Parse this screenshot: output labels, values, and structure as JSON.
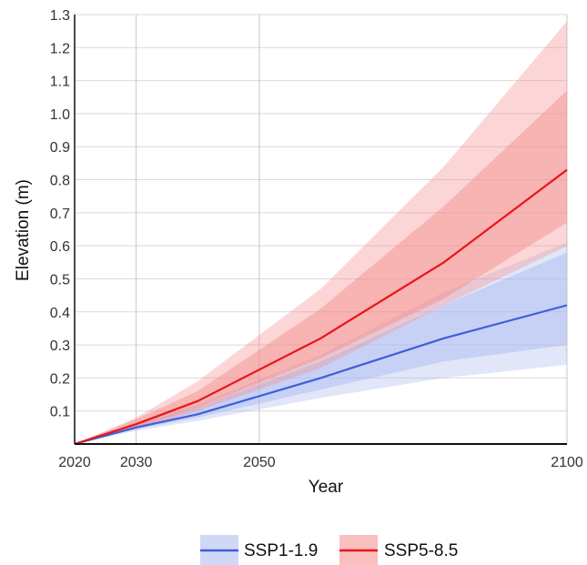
{
  "chart_data": {
    "type": "area",
    "title": "",
    "xlabel": "Year",
    "ylabel": "Elevation (m)",
    "xlim": [
      2020,
      2100
    ],
    "ylim": [
      0,
      1.3
    ],
    "x_ticks": [
      2020,
      2030,
      2050,
      2100
    ],
    "y_ticks": [
      "0.1",
      "0.2",
      "0.3",
      "0.4",
      "0.5",
      "0.6",
      "0.7",
      "0.8",
      "0.9",
      "1.0",
      "1.1",
      "1.2",
      "1.3"
    ],
    "grid": true,
    "legend_position": "bottom",
    "series": [
      {
        "name": "SSP1-1.9",
        "color": "#3d5fd9",
        "band_color": "#a8b8ef",
        "x": [
          2020,
          2030,
          2040,
          2060,
          2080,
          2100
        ],
        "values": [
          0.0,
          0.05,
          0.09,
          0.2,
          0.32,
          0.42
        ],
        "likely_range": {
          "low": [
            0.0,
            0.045,
            0.08,
            0.165,
            0.25,
            0.3
          ],
          "high": [
            0.0,
            0.06,
            0.11,
            0.25,
            0.42,
            0.58
          ]
        },
        "very_likely_range": {
          "low": [
            0.0,
            0.04,
            0.07,
            0.14,
            0.2,
            0.24
          ],
          "high": [
            0.0,
            0.065,
            0.12,
            0.27,
            0.46,
            0.61
          ]
        }
      },
      {
        "name": "SSP5-8.5",
        "color": "#e8151a",
        "band_color": "#f58a8a",
        "x": [
          2020,
          2030,
          2040,
          2060,
          2080,
          2100
        ],
        "values": [
          0.0,
          0.06,
          0.13,
          0.32,
          0.55,
          0.83
        ],
        "likely_range": {
          "low": [
            0.0,
            0.05,
            0.11,
            0.26,
            0.44,
            0.67
          ],
          "high": [
            0.0,
            0.075,
            0.16,
            0.41,
            0.72,
            1.07
          ]
        },
        "very_likely_range": {
          "low": [
            0.0,
            0.045,
            0.1,
            0.23,
            0.42,
            0.6
          ],
          "high": [
            0.0,
            0.08,
            0.19,
            0.47,
            0.84,
            1.28
          ]
        }
      }
    ]
  }
}
